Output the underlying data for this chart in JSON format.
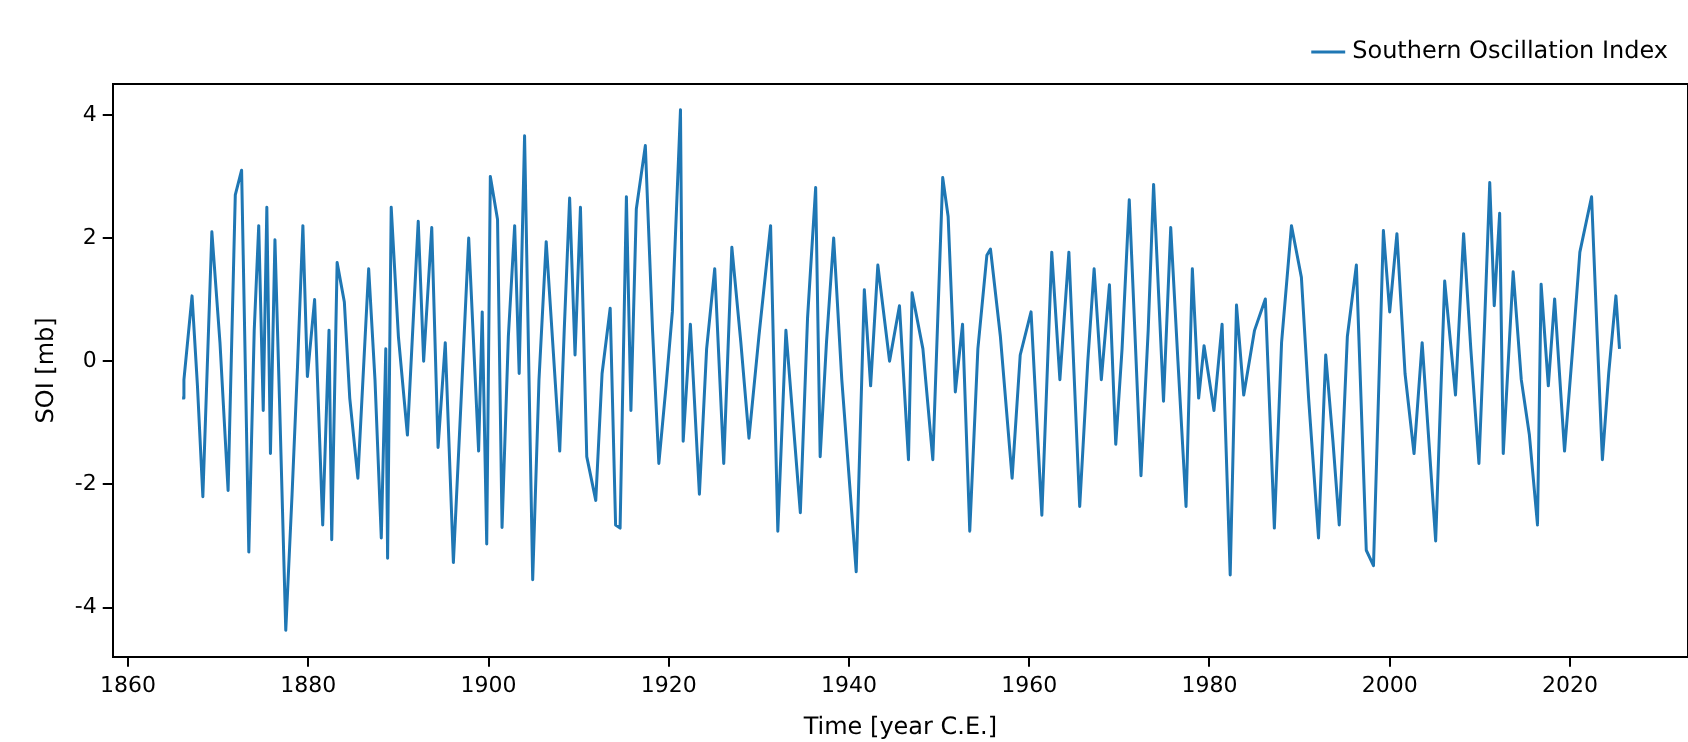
{
  "chart_data": {
    "type": "line",
    "xlabel": "Time [year C.E.]",
    "ylabel": "SOI [mb]",
    "xlim": [
      1858.3,
      2033.1
    ],
    "xticks": [
      1860,
      1880,
      1900,
      1920,
      1940,
      1960,
      1980,
      2000,
      2020
    ],
    "ylim": [
      -4.8,
      4.5
    ],
    "yticks": [
      -4,
      -2,
      0,
      2,
      4
    ],
    "grid": false,
    "legend": "top right",
    "marker": "none",
    "line_style": "solid",
    "x": [
      1866.0,
      1866.2,
      1867.1,
      1867.7,
      1868.3,
      1869.3,
      1870.2,
      1871.1,
      1871.9,
      1872.6,
      1873.4,
      1874.0,
      1874.5,
      1875.0,
      1875.4,
      1875.8,
      1876.3,
      1876.8,
      1877.5,
      1878.2,
      1878.8,
      1879.4,
      1879.9,
      1880.7,
      1881.6,
      1882.3,
      1882.6,
      1883.2,
      1884.0,
      1884.6,
      1885.5,
      1886.7,
      1887.4,
      1888.1,
      1888.6,
      1888.8,
      1889.2,
      1890.0,
      1891.0,
      1892.2,
      1892.8,
      1893.7,
      1894.4,
      1895.2,
      1896.1,
      1897.0,
      1897.8,
      1898.9,
      1899.3,
      1899.8,
      1900.2,
      1901.0,
      1901.5,
      1902.2,
      1902.9,
      1903.4,
      1904.0,
      1904.9,
      1905.6,
      1906.4,
      1907.9,
      1908.4,
      1909.0,
      1909.6,
      1910.2,
      1910.9,
      1911.9,
      1912.6,
      1913.5,
      1914.1,
      1914.6,
      1915.3,
      1915.8,
      1916.4,
      1917.4,
      1918.2,
      1918.9,
      1919.7,
      1920.4,
      1921.3,
      1921.6,
      1922.4,
      1923.4,
      1924.2,
      1925.1,
      1926.1,
      1927.0,
      1928.0,
      1928.9,
      1930.0,
      1931.3,
      1932.1,
      1933.0,
      1934.6,
      1935.4,
      1936.3,
      1936.8,
      1937.5,
      1938.3,
      1939.2,
      1940.8,
      1941.7,
      1942.4,
      1943.2,
      1944.5,
      1945.6,
      1946.6,
      1947.0,
      1948.2,
      1949.3,
      1950.4,
      1951.0,
      1951.8,
      1952.6,
      1953.4,
      1954.3,
      1955.3,
      1955.7,
      1956.8,
      1958.1,
      1959.0,
      1960.2,
      1961.4,
      1962.5,
      1963.4,
      1964.4,
      1965.6,
      1966.5,
      1967.2,
      1968.0,
      1968.9,
      1969.6,
      1970.3,
      1971.1,
      1972.4,
      1973.2,
      1973.8,
      1974.9,
      1975.7,
      1976.5,
      1977.4,
      1978.1,
      1978.8,
      1979.4,
      1980.5,
      1981.4,
      1982.3,
      1983.0,
      1983.8,
      1985.0,
      1986.2,
      1987.2,
      1988.0,
      1989.1,
      1990.2,
      1991.0,
      1992.1,
      1992.9,
      1993.7,
      1994.4,
      1995.3,
      1996.3,
      1997.4,
      1998.2,
      1999.3,
      2000.0,
      2000.8,
      2001.7,
      2002.7,
      2003.6,
      2005.1,
      2006.1,
      2007.3,
      2008.2,
      2009.0,
      2009.9,
      2010.5,
      2011.1,
      2011.6,
      2012.2,
      2012.6,
      2013.7,
      2014.6,
      2015.5,
      2016.4,
      2016.8,
      2017.6,
      2018.3,
      2019.4,
      2020.3,
      2021.1,
      2022.4,
      2023.0,
      2023.6,
      2024.3,
      2025.1,
      2025.5
    ],
    "series": [
      {
        "name": "Southern Oscillation Index",
        "color": "#1f77b4",
        "values": [
          -0.6,
          -0.3,
          1.06,
          -0.4,
          -2.2,
          2.1,
          0.3,
          -2.1,
          2.7,
          3.1,
          -3.1,
          0.5,
          2.2,
          -0.8,
          2.5,
          -1.5,
          1.97,
          -0.6,
          -4.37,
          -2.16,
          -0.1,
          2.2,
          -0.25,
          1.0,
          -2.66,
          0.5,
          -2.9,
          1.6,
          0.96,
          -0.6,
          -1.9,
          1.5,
          -0.3,
          -2.87,
          0.2,
          -3.2,
          2.5,
          0.4,
          -1.2,
          2.27,
          0.0,
          2.17,
          -1.4,
          0.3,
          -3.27,
          -0.5,
          2.0,
          -1.46,
          0.8,
          -2.97,
          3.0,
          2.3,
          -2.7,
          0.4,
          2.2,
          -0.2,
          3.66,
          -3.55,
          -0.3,
          1.94,
          -1.46,
          0.5,
          2.65,
          0.1,
          2.5,
          -1.55,
          -2.26,
          -0.2,
          0.86,
          -2.66,
          -2.71,
          2.67,
          -0.8,
          2.47,
          3.5,
          0.5,
          -1.66,
          -0.4,
          0.8,
          4.08,
          -1.3,
          0.6,
          -2.16,
          0.2,
          1.5,
          -1.66,
          1.85,
          0.3,
          -1.25,
          0.4,
          2.2,
          -2.76,
          0.5,
          -2.46,
          0.7,
          2.82,
          -1.55,
          0.3,
          2.0,
          -0.3,
          -3.42,
          1.16,
          -0.4,
          1.56,
          0.0,
          0.9,
          -1.6,
          1.11,
          0.2,
          -1.6,
          2.98,
          2.35,
          -0.5,
          0.6,
          -2.76,
          0.2,
          1.72,
          1.82,
          0.4,
          -1.9,
          0.1,
          0.8,
          -2.5,
          1.77,
          -0.3,
          1.77,
          -2.36,
          0.0,
          1.5,
          -0.3,
          1.24,
          -1.35,
          0.2,
          2.62,
          -1.86,
          0.5,
          2.87,
          -0.65,
          2.17,
          0.0,
          -2.36,
          1.5,
          -0.6,
          0.25,
          -0.8,
          0.6,
          -3.47,
          0.91,
          -0.55,
          0.5,
          1.01,
          -2.71,
          0.3,
          2.2,
          1.36,
          -0.6,
          -2.87,
          0.1,
          -1.3,
          -2.66,
          0.4,
          1.56,
          -3.07,
          -3.32,
          2.12,
          0.8,
          2.07,
          -0.2,
          -1.5,
          0.3,
          -2.92,
          1.3,
          -0.55,
          2.07,
          0.2,
          -1.66,
          0.5,
          2.9,
          0.9,
          2.4,
          -1.5,
          1.45,
          -0.3,
          -1.2,
          -2.66,
          1.25,
          -0.4,
          1.01,
          -1.46,
          0.2,
          1.77,
          2.67,
          0.5,
          -1.6,
          -0.2,
          1.06,
          0.2
        ]
      }
    ]
  }
}
